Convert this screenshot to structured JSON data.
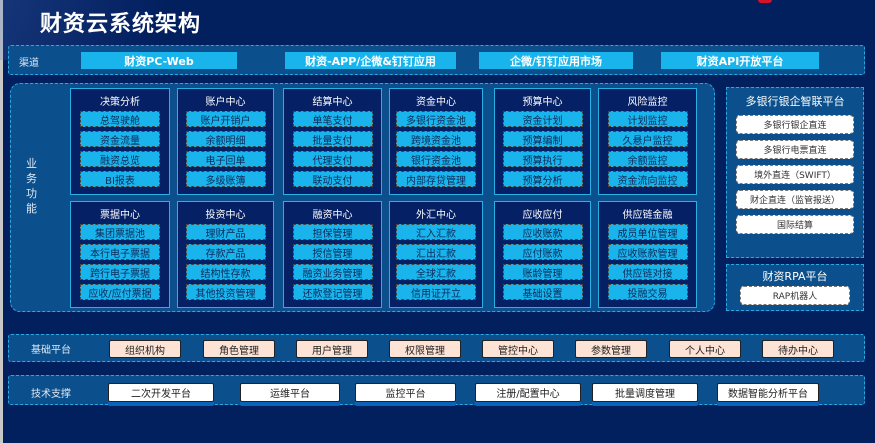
{
  "title": "财资云系统架构",
  "channel": {
    "label": "渠道",
    "items": [
      "财资PC-Web",
      "财资-APP/企微&钉钉应用",
      "企微/钉钉应用市场",
      "财资API开放平台"
    ]
  },
  "business": {
    "label": "业务功能",
    "modules": [
      {
        "title": "决策分析",
        "items": [
          "总驾驶舱",
          "资金流量",
          "融资总览",
          "BI报表"
        ]
      },
      {
        "title": "账户中心",
        "items": [
          "账户开销户",
          "余额明细",
          "电子回单",
          "多级账簿"
        ]
      },
      {
        "title": "结算中心",
        "items": [
          "单笔支付",
          "批量支付",
          "代理支付",
          "联动支付"
        ]
      },
      {
        "title": "资金中心",
        "items": [
          "多银行资金池",
          "跨境资金池",
          "银行资金池",
          "内部存贷管理"
        ]
      },
      {
        "title": "预算中心",
        "items": [
          "资金计划",
          "预算编制",
          "预算执行",
          "预算分析"
        ]
      },
      {
        "title": "风险监控",
        "items": [
          "计划监控",
          "久悬户监控",
          "余额监控",
          "资金流向监控"
        ]
      },
      {
        "title": "票据中心",
        "items": [
          "集团票据池",
          "本行电子票据",
          "跨行电子票据",
          "应收/应付票据"
        ]
      },
      {
        "title": "投资中心",
        "items": [
          "理财产品",
          "存款产品",
          "结构性存款",
          "其他投资管理"
        ]
      },
      {
        "title": "融资中心",
        "items": [
          "担保管理",
          "授信管理",
          "融资业务管理",
          "还款登记管理"
        ]
      },
      {
        "title": "外汇中心",
        "items": [
          "汇入汇款",
          "汇出汇款",
          "全球汇款",
          "信用证开立"
        ]
      },
      {
        "title": "应收应付",
        "items": [
          "应收账款",
          "应付账款",
          "账龄管理",
          "基础设置"
        ]
      },
      {
        "title": "供应链金融",
        "items": [
          "成员单位管理",
          "应收账款管理",
          "供应链对接",
          "投融交易"
        ]
      }
    ]
  },
  "bank": {
    "title": "多银行银企智联平台",
    "items": [
      "多银行银企直连",
      "多银行电票直连",
      "境外直连（SWIFT）",
      "财企直连（监管报送）",
      "国际结算"
    ]
  },
  "rpa": {
    "title": "财资RPA平台",
    "items": [
      "RAP机器人"
    ]
  },
  "base": {
    "label": "基础平台",
    "items": [
      "组织机构",
      "角色管理",
      "用户管理",
      "权限管理",
      "管控中心",
      "参数管理",
      "个人中心",
      "待办中心"
    ]
  },
  "tech": {
    "label": "技术支撑",
    "items": [
      "二次开发平台",
      "运维平台",
      "监控平台",
      "注册/配置中心",
      "批量调度管理",
      "数据智能分析平台"
    ]
  }
}
